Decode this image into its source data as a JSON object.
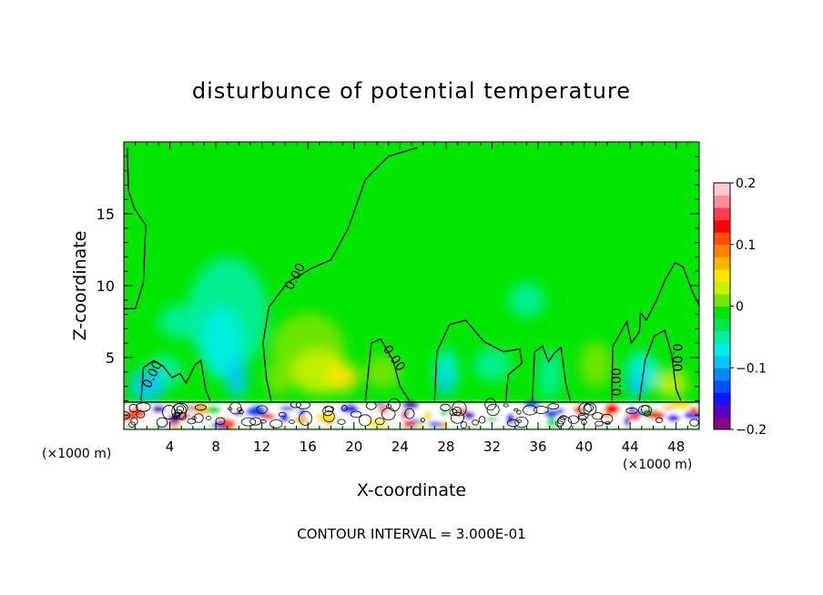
{
  "chart_data": {
    "type": "heatmap",
    "title": "disturbunce of potential temperature",
    "xlabel": "X-coordinate",
    "ylabel": "Z-coordinate",
    "x_unit_label": "(×1000 m)",
    "xlim": [
      0,
      50
    ],
    "ylim": [
      0,
      20
    ],
    "x_ticks": [
      4,
      8,
      12,
      16,
      20,
      24,
      28,
      32,
      36,
      40,
      44,
      48
    ],
    "y_ticks": [
      5,
      10,
      15
    ],
    "colorbar": {
      "range": [
        -0.2,
        0.2
      ],
      "ticks": [
        0.2,
        0.1,
        0,
        -0.1,
        -0.2
      ],
      "tick_labels": [
        "0.2",
        "0.1",
        "0",
        "−0.1",
        "−0.2"
      ],
      "colors": [
        "#8b008b",
        "#5a00c8",
        "#1414ff",
        "#0050ff",
        "#008cff",
        "#00c8ff",
        "#00f0e6",
        "#00f0a0",
        "#00e650",
        "#00e600",
        "#78e600",
        "#c8f000",
        "#ffe600",
        "#ffb400",
        "#ff8200",
        "#ff5000",
        "#ff0000",
        "#ff3c50",
        "#ff8c96",
        "#ffc8c8"
      ]
    },
    "contour_labels": [
      "0.00",
      "0.00",
      "0.00",
      "0.00",
      "0.00"
    ],
    "contour_interval_label": "CONTOUR INTERVAL = 3.000E-01",
    "zero_contour_segments": [
      [
        [
          0,
          8.4
        ],
        [
          1,
          8.4
        ],
        [
          1.7,
          10.2
        ],
        [
          1.9,
          14.2
        ],
        [
          0.9,
          15.4
        ],
        [
          0.4,
          16.6
        ],
        [
          0.3,
          19.6
        ]
      ],
      [
        [
          25.5,
          19.6
        ],
        [
          23,
          19.0
        ],
        [
          21,
          17.4
        ],
        [
          19.5,
          14.0
        ],
        [
          18,
          11.8
        ],
        [
          16.3,
          11.2
        ],
        [
          14.2,
          10.2
        ],
        [
          12.6,
          8.5
        ],
        [
          12.1,
          6.0
        ],
        [
          12.4,
          3.5
        ],
        [
          12.8,
          2.0
        ]
      ],
      [
        [
          1.5,
          2.0
        ],
        [
          1.7,
          4.3
        ],
        [
          2.6,
          4.8
        ],
        [
          3.4,
          4.4
        ],
        [
          4.2,
          3.6
        ],
        [
          4.9,
          3.9
        ],
        [
          5.4,
          3.2
        ],
        [
          6.2,
          4.5
        ],
        [
          6.7,
          4.8
        ],
        [
          7.1,
          2.8
        ],
        [
          7.5,
          2.0
        ]
      ],
      [
        [
          21.0,
          2.0
        ],
        [
          21.5,
          6.0
        ],
        [
          22.3,
          6.3
        ],
        [
          23.4,
          4.8
        ],
        [
          24.0,
          3.0
        ],
        [
          24.8,
          2.0
        ]
      ],
      [
        [
          27.0,
          2.0
        ],
        [
          27.2,
          5.4
        ],
        [
          28.3,
          7.3
        ],
        [
          29.7,
          7.6
        ],
        [
          31.3,
          6.1
        ],
        [
          33.0,
          5.4
        ],
        [
          34.4,
          5.6
        ],
        [
          34.6,
          4.6
        ],
        [
          33.4,
          3.8
        ],
        [
          33.2,
          2.0
        ]
      ],
      [
        [
          35.5,
          2.0
        ],
        [
          35.7,
          5.4
        ],
        [
          36.4,
          5.8
        ],
        [
          36.9,
          4.7
        ],
        [
          37.4,
          5.3
        ],
        [
          38.0,
          5.7
        ],
        [
          38.4,
          3.2
        ],
        [
          38.8,
          2.0
        ]
      ],
      [
        [
          42.4,
          2.0
        ],
        [
          42.5,
          5.8
        ],
        [
          43.7,
          7.5
        ],
        [
          44.1,
          6.0
        ],
        [
          44.8,
          6.8
        ],
        [
          44.9,
          8.1
        ],
        [
          45.4,
          7.6
        ],
        [
          46.3,
          9.0
        ],
        [
          47.1,
          10.5
        ],
        [
          47.9,
          11.6
        ],
        [
          48.6,
          11.3
        ],
        [
          49.4,
          9.6
        ],
        [
          50,
          8.6
        ]
      ],
      [
        [
          44.8,
          2.0
        ],
        [
          45.3,
          4.8
        ],
        [
          46.1,
          6.5
        ],
        [
          47.0,
          6.9
        ],
        [
          47.6,
          5.2
        ],
        [
          48.0,
          2.8
        ],
        [
          48.4,
          2.0
        ]
      ]
    ]
  }
}
